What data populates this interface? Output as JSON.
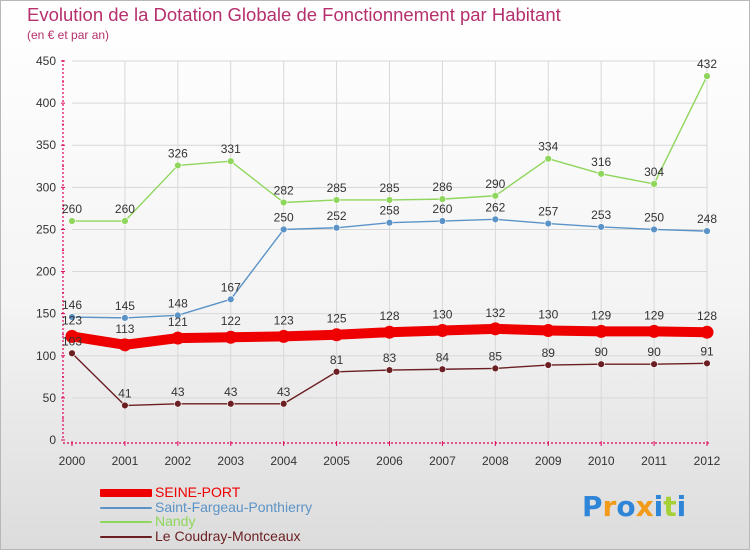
{
  "header": {
    "title": "Evolution de la Dotation Globale de Fonctionnement par Habitant",
    "subtitle": "(en € et par an)"
  },
  "logo": {
    "text": "Proxiti"
  },
  "colors": {
    "title": "#b5306c",
    "axis": "#e0005a",
    "grid": "#d8d8d8",
    "seine_port": "#ee0000",
    "saint_fargeau": "#5b93c7",
    "nandy": "#8fd65c",
    "le_coudray": "#6b1f22",
    "logo": [
      "#2f86d8",
      "#f29a1a",
      "#2f86d8",
      "#f29a1a",
      "#2f86d8",
      "#a5d136",
      "#2f86d8"
    ]
  },
  "chart_data": {
    "type": "line",
    "title": "Evolution de la Dotation Globale de Fonctionnement par Habitant",
    "subtitle": "(en € et par an)",
    "xlabel": "",
    "ylabel": "",
    "x": [
      "2000",
      "2001",
      "2002",
      "2003",
      "2004",
      "2005",
      "2006",
      "2007",
      "2008",
      "2009",
      "2010",
      "2011",
      "2012"
    ],
    "ylim": [
      0,
      450
    ],
    "yticks": [
      0,
      50,
      100,
      150,
      200,
      250,
      300,
      350,
      400,
      450
    ],
    "grid": true,
    "legend_position": "bottom-left",
    "series": [
      {
        "name": "SEINE-PORT",
        "color": "#ee0000",
        "width": "thick",
        "values": [
          123,
          113,
          121,
          122,
          123,
          125,
          128,
          130,
          132,
          130,
          129,
          129,
          128
        ]
      },
      {
        "name": "Saint-Fargeau-Ponthierry",
        "color": "#5b93c7",
        "width": "thin",
        "values": [
          146,
          145,
          148,
          167,
          250,
          252,
          258,
          260,
          262,
          257,
          253,
          250,
          248
        ]
      },
      {
        "name": "Nandy",
        "color": "#8fd65c",
        "width": "thin",
        "values": [
          260,
          260,
          326,
          331,
          282,
          285,
          285,
          286,
          290,
          334,
          316,
          304,
          432
        ]
      },
      {
        "name": "Le Coudray-Montceaux",
        "color": "#6b1f22",
        "width": "thin",
        "values": [
          103,
          41,
          43,
          43,
          43,
          81,
          83,
          84,
          85,
          89,
          90,
          90,
          91
        ]
      }
    ]
  }
}
